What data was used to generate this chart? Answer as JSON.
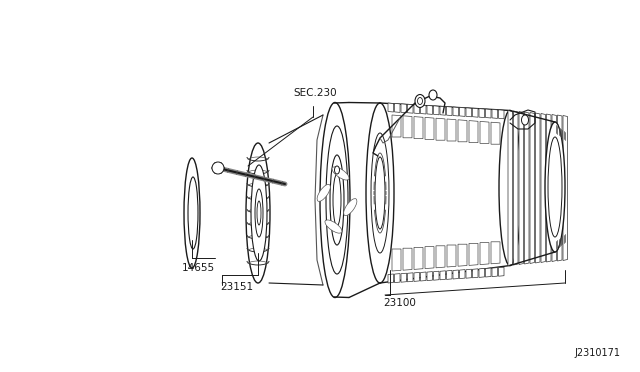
{
  "background_color": "#ffffff",
  "line_color": "#1a1a1a",
  "text_color": "#1a1a1a",
  "diagram_id": "J2310171",
  "labels": {
    "sec230": "SEC.230",
    "part14655": "14655",
    "part23151": "23151",
    "part23100": "23100"
  },
  "font_size_labels": 7.5,
  "font_size_id": 7.0,
  "figsize": [
    6.4,
    3.72
  ],
  "dpi": 100
}
